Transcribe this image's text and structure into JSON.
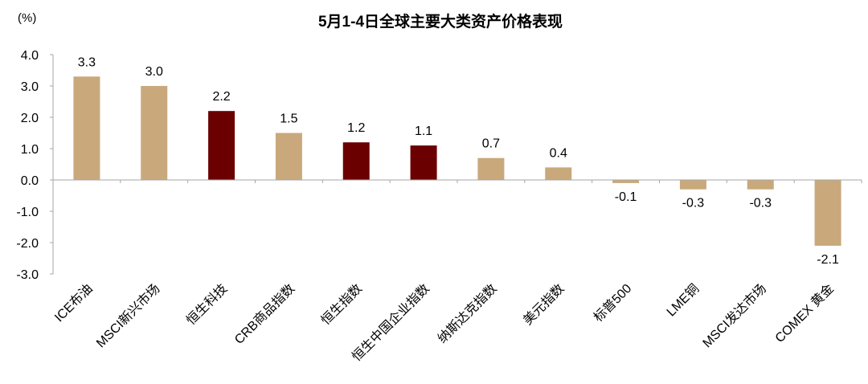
{
  "chart_data": {
    "type": "bar",
    "title": "5月1-4日全球主要大类资产价格表现",
    "unit_label": "(%)",
    "xlabel": "",
    "ylabel": "",
    "ylim": [
      -3.0,
      4.0
    ],
    "yticks": [
      "4.0",
      "3.0",
      "2.0",
      "1.0",
      "0.0",
      "-1.0",
      "-2.0",
      "-3.0"
    ],
    "ytick_values": [
      4,
      3,
      2,
      1,
      0,
      -1,
      -2,
      -3
    ],
    "grid": false,
    "legend": "none",
    "categories": [
      "ICE布油",
      "MSCI新兴市场",
      "恒生科技",
      "CRB商品指数",
      "恒生指数",
      "恒生中国企业指数",
      "纳斯达克指数",
      "美元指数",
      "标普500",
      "LME铜",
      "MSCI发达市场",
      "COMEX 黄金"
    ],
    "values": [
      3.3,
      3.0,
      2.2,
      1.5,
      1.2,
      1.1,
      0.7,
      0.4,
      -0.1,
      -0.3,
      -0.3,
      -2.1
    ],
    "value_labels": [
      "3.3",
      "3.0",
      "2.2",
      "1.5",
      "1.2",
      "1.1",
      "0.7",
      "0.4",
      "-0.1",
      "-0.3",
      "-0.3",
      "-2.1"
    ],
    "bar_color_keys": [
      "tan",
      "tan",
      "maroon",
      "tan",
      "maroon",
      "maroon",
      "tan",
      "tan",
      "tan",
      "tan",
      "tan",
      "tan"
    ]
  },
  "colors": {
    "tan": "#C9A87C",
    "maroon": "#6B0000",
    "axis": "#A6A6A6",
    "text": "#000000"
  }
}
